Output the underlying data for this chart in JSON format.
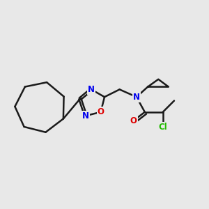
{
  "bg_color": "#e8e8e8",
  "bond_color": "#1a1a1a",
  "bond_width": 1.8,
  "atom_colors": {
    "N": "#0000ee",
    "O": "#dd0000",
    "Cl": "#22bb00",
    "C": "#1a1a1a"
  },
  "font_size_atom": 8.5,
  "figsize": [
    3.0,
    3.0
  ],
  "dpi": 100,
  "xlim": [
    0.0,
    5.5
  ],
  "ylim": [
    0.5,
    3.2
  ]
}
